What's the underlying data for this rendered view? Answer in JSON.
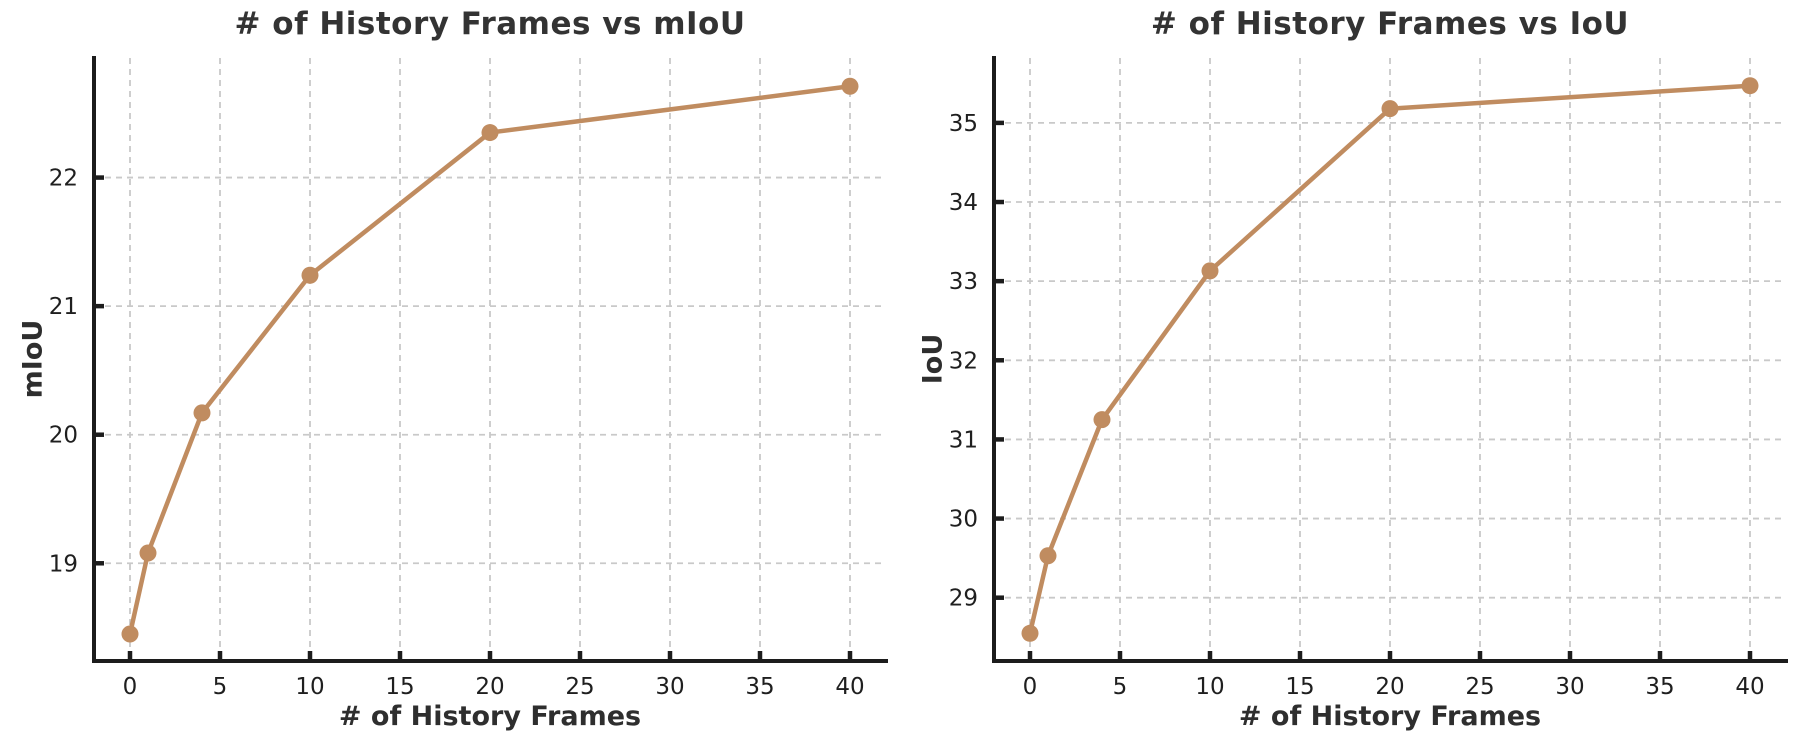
{
  "style": {
    "background": "#ffffff",
    "accent_color": "#C08C60",
    "grid_color": "#c9c9c9",
    "spine_color": "#1c1c1c",
    "title_color": "#333333",
    "tick_label_color": "#1f1f1f"
  },
  "chart_data": [
    {
      "type": "line",
      "title": "# of History Frames vs mIoU",
      "xlabel": "# of History Frames",
      "ylabel": "mIoU",
      "x": [
        0,
        1,
        4,
        10,
        20,
        40
      ],
      "y": [
        18.45,
        19.08,
        20.17,
        21.24,
        22.35,
        22.71
      ],
      "xticks": [
        0,
        5,
        10,
        15,
        20,
        25,
        30,
        35,
        40
      ],
      "yticks": [
        19,
        20,
        21,
        22
      ],
      "xlim": [
        -2,
        42
      ],
      "ylim": [
        18.24,
        22.93
      ],
      "line_color": "#C08C60",
      "marker": "circle",
      "grid": true,
      "legend": "none"
    },
    {
      "type": "line",
      "title": "# of History Frames vs IoU",
      "xlabel": "# of History Frames",
      "ylabel": "IoU",
      "x": [
        0,
        1,
        4,
        10,
        20,
        40
      ],
      "y": [
        28.55,
        29.53,
        31.25,
        33.13,
        35.18,
        35.47
      ],
      "xticks": [
        0,
        5,
        10,
        15,
        20,
        25,
        30,
        35,
        40
      ],
      "yticks": [
        29,
        30,
        31,
        32,
        33,
        34,
        35
      ],
      "xlim": [
        -2,
        42
      ],
      "ylim": [
        28.2,
        35.82
      ],
      "line_color": "#C08C60",
      "marker": "circle",
      "grid": true,
      "legend": "none"
    }
  ]
}
